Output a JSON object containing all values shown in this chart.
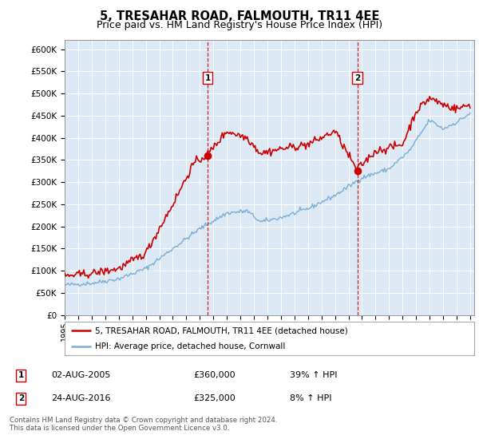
{
  "title": "5, TRESAHAR ROAD, FALMOUTH, TR11 4EE",
  "subtitle": "Price paid vs. HM Land Registry's House Price Index (HPI)",
  "ylim": [
    0,
    620000
  ],
  "yticks": [
    0,
    50000,
    100000,
    150000,
    200000,
    250000,
    300000,
    350000,
    400000,
    450000,
    500000,
    550000,
    600000
  ],
  "ytick_labels": [
    "£0",
    "£50K",
    "£100K",
    "£150K",
    "£200K",
    "£250K",
    "£300K",
    "£350K",
    "£400K",
    "£450K",
    "£500K",
    "£550K",
    "£600K"
  ],
  "plot_bg_color": "#dce9f5",
  "red_line_color": "#cc0000",
  "blue_line_color": "#7aadd4",
  "vline_color": "#cc0000",
  "sale1_year": 2005.58,
  "sale1_price": 360000,
  "sale2_year": 2016.65,
  "sale2_price": 325000,
  "legend_label_red": "5, TRESAHAR ROAD, FALMOUTH, TR11 4EE (detached house)",
  "legend_label_blue": "HPI: Average price, detached house, Cornwall",
  "annotation1": "1",
  "annotation2": "2",
  "table_row1": [
    "1",
    "02-AUG-2005",
    "£360,000",
    "39% ↑ HPI"
  ],
  "table_row2": [
    "2",
    "24-AUG-2016",
    "£325,000",
    "8% ↑ HPI"
  ],
  "footer": "Contains HM Land Registry data © Crown copyright and database right 2024.\nThis data is licensed under the Open Government Licence v3.0.",
  "title_fontsize": 10.5,
  "subtitle_fontsize": 9
}
